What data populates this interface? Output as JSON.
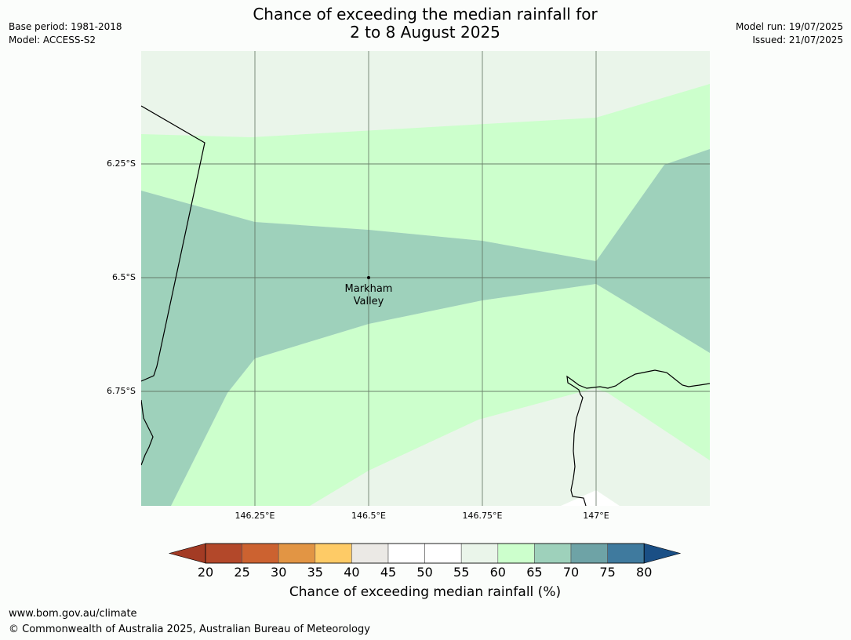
{
  "header": {
    "title_line1": "Chance of exceeding the median rainfall for",
    "title_line2": "2 to 8 August 2025",
    "base_period": "Base period: 1981-2018",
    "model": "Model: ACCESS-S2",
    "model_run": "Model run: 19/07/2025",
    "issued": "Issued: 21/07/2025"
  },
  "map": {
    "lat_labels": [
      "6.25°S",
      "6.5°S",
      "6.75°S"
    ],
    "lon_labels": [
      "146.25°E",
      "146.5°E",
      "146.75°E",
      "147°E"
    ],
    "place": {
      "name_line1": "Markham",
      "name_line2": "Valley",
      "lat": -6.5,
      "lon": 146.5
    },
    "zone_colors": {
      "55-60": "#eaf5ea",
      "60-65": "#ccffcc",
      "65-70": "#9ed1bb"
    }
  },
  "legend": {
    "title": "Chance of exceeding median rainfall (%)",
    "ticks": [
      "20",
      "25",
      "30",
      "35",
      "40",
      "45",
      "50",
      "55",
      "60",
      "65",
      "70",
      "75",
      "80"
    ],
    "colors": [
      "#a33b24",
      "#b3482a",
      "#cc6230",
      "#e29544",
      "#fecb66",
      "#ebe9e5",
      "#ffffff",
      "#ffffff",
      "#eaf5ea",
      "#ccffcc",
      "#9ed1bb",
      "#6ea3a6",
      "#3f7a9e",
      "#1a4f85"
    ]
  },
  "footer": {
    "website": "www.bom.gov.au/climate",
    "copyright": "© Commonwealth of Australia 2025, Australian Bureau of Meteorology"
  }
}
